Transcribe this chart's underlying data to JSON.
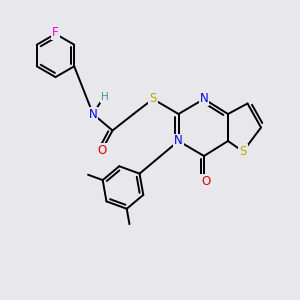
{
  "background_color": "#e8e8ec",
  "atom_colors": {
    "C": "#000000",
    "N": "#0000dd",
    "O": "#dd0000",
    "S": "#bbaa00",
    "F": "#ee00ee",
    "H": "#4a9090"
  },
  "bond_lw": 1.4,
  "font_size": 8.5
}
